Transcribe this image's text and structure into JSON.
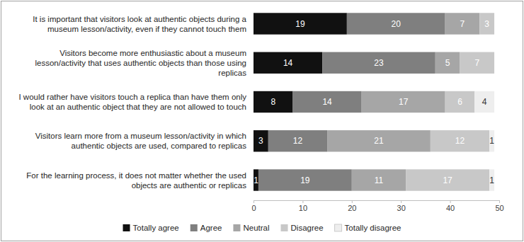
{
  "chart_data": {
    "type": "bar",
    "orientation": "horizontal",
    "stacked": true,
    "data_labels": true,
    "grid": false,
    "legend": "bottom",
    "categories": [
      "It is important that visitors look at authentic objects during a museum lesson/activity, even if they cannot touch them",
      "Visitors become more enthusiastic about a museum lesson/activity that uses authentic objects than those using replicas",
      "I would rather have visitors touch a replica than have them only look at an authentic object that they are not allowed to touch",
      "Visitors learn more from a museum lesson/activity in which authentic objects are used, compared to replicas",
      "For the learning process, it does not matter whether the used objects are authentic or replicas"
    ],
    "series": [
      {
        "name": "Totally agree",
        "color": "#111111",
        "values": [
          19,
          14,
          8,
          3,
          1
        ]
      },
      {
        "name": "Agree",
        "color": "#7f7f7f",
        "values": [
          20,
          23,
          14,
          12,
          19
        ]
      },
      {
        "name": "Neutral",
        "color": "#a6a6a6",
        "values": [
          7,
          5,
          17,
          21,
          11
        ]
      },
      {
        "name": "Disagree",
        "color": "#c8c8c8",
        "values": [
          3,
          7,
          6,
          12,
          17
        ]
      },
      {
        "name": "Totally disagree",
        "color": "#eeeeee",
        "values": [
          null,
          null,
          4,
          1,
          1
        ]
      }
    ],
    "xlim": [
      0,
      50
    ],
    "xticks": [
      0,
      10,
      20,
      30,
      40,
      50
    ]
  }
}
